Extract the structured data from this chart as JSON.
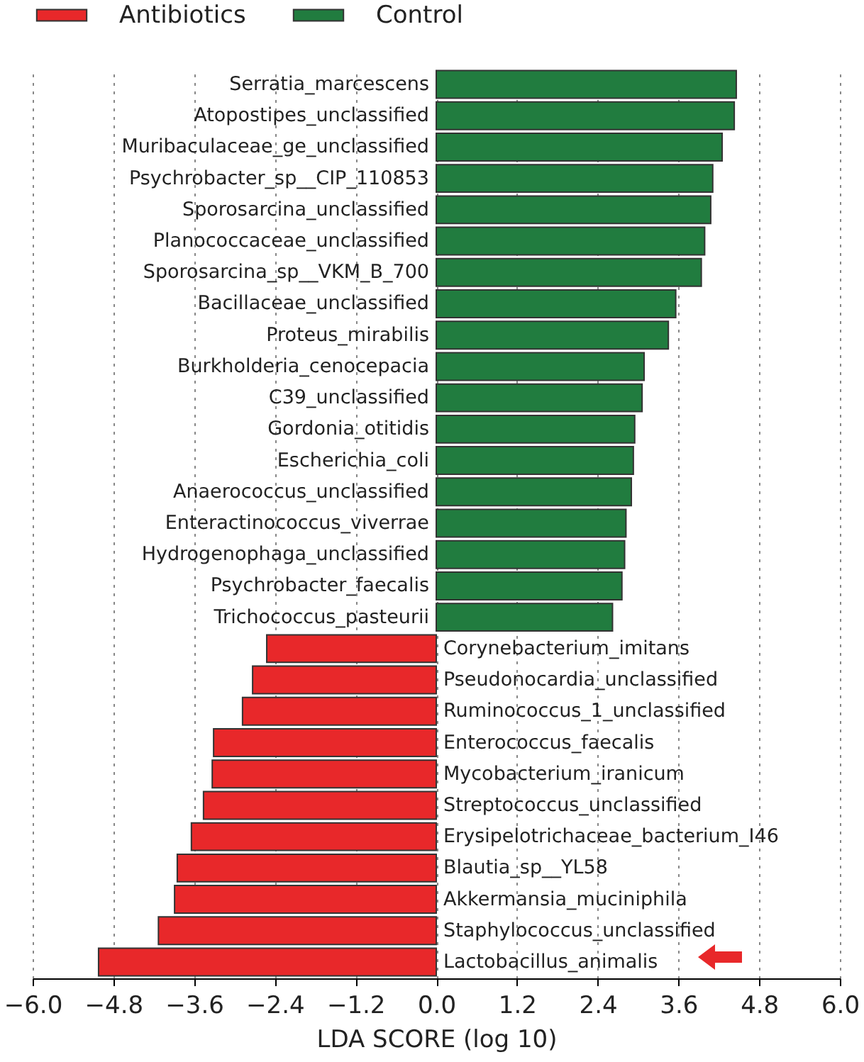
{
  "chart_data": {
    "type": "bar",
    "orientation": "horizontal",
    "xlabel": "LDA SCORE (log 10)",
    "categories": [
      "Serratia_marcescens",
      "Atopostipes_unclassified",
      "Muribaculaceae_ge_unclassified",
      "Psychrobacter_sp__CIP_110853",
      "Sporosarcina_unclassified",
      "Planococcaceae_unclassified",
      "Sporosarcina_sp__VKM_B_700",
      "Bacillaceae_unclassified",
      "Proteus_mirabilis",
      "Burkholderia_cenocepacia",
      "C39_unclassified",
      "Gordonia_otitidis",
      "Escherichia_coli",
      "Anaerococcus_unclassified",
      "Enteractinococcus_viverrae",
      "Hydrogenophaga_unclassified",
      "Psychrobacter_faecalis",
      "Trichococcus_pasteurii",
      "Corynebacterium_imitans",
      "Pseudonocardia_unclassified",
      "Ruminococcus_1_unclassified",
      "Enterococcus_faecalis",
      "Mycobacterium_iranicum",
      "Streptococcus_unclassified",
      "Erysipelotrichaceae_bacterium_I46",
      "Blautia_sp__YL58",
      "Akkermansia_muciniphila",
      "Staphylococcus_unclassified",
      "Lactobacillus_animalis"
    ],
    "series": [
      {
        "name": "Antibiotics",
        "color": "#e8282a",
        "values": [
          null,
          null,
          null,
          null,
          null,
          null,
          null,
          null,
          null,
          null,
          null,
          null,
          null,
          null,
          null,
          null,
          null,
          null,
          -2.52,
          -2.73,
          -2.88,
          -3.31,
          -3.33,
          -3.46,
          -3.64,
          -3.85,
          -3.89,
          -4.13,
          -5.02
        ]
      },
      {
        "name": "Control",
        "color": "#217c3f",
        "values": [
          4.46,
          4.43,
          4.25,
          4.11,
          4.08,
          3.99,
          3.94,
          3.56,
          3.45,
          3.09,
          3.06,
          2.95,
          2.93,
          2.9,
          2.82,
          2.8,
          2.76,
          2.62,
          null,
          null,
          null,
          null,
          null,
          null,
          null,
          null,
          null,
          null,
          null
        ]
      }
    ],
    "xlim": [
      -6,
      6
    ],
    "xticks": [
      {
        "value": -6,
        "label": "−6.0"
      },
      {
        "value": -4.8,
        "label": "−4.8"
      },
      {
        "value": -3.6,
        "label": "−3.6"
      },
      {
        "value": -2.4,
        "label": "−2.4"
      },
      {
        "value": -1.2,
        "label": "−1.2"
      },
      {
        "value": 0,
        "label": "0.0"
      },
      {
        "value": 1.2,
        "label": "1.2"
      },
      {
        "value": 2.4,
        "label": "2.4"
      },
      {
        "value": 3.6,
        "label": "3.6"
      },
      {
        "value": 4.8,
        "label": "4.8"
      },
      {
        "value": 6,
        "label": "6.0"
      }
    ],
    "grid": "x",
    "legend": "top left"
  }
}
